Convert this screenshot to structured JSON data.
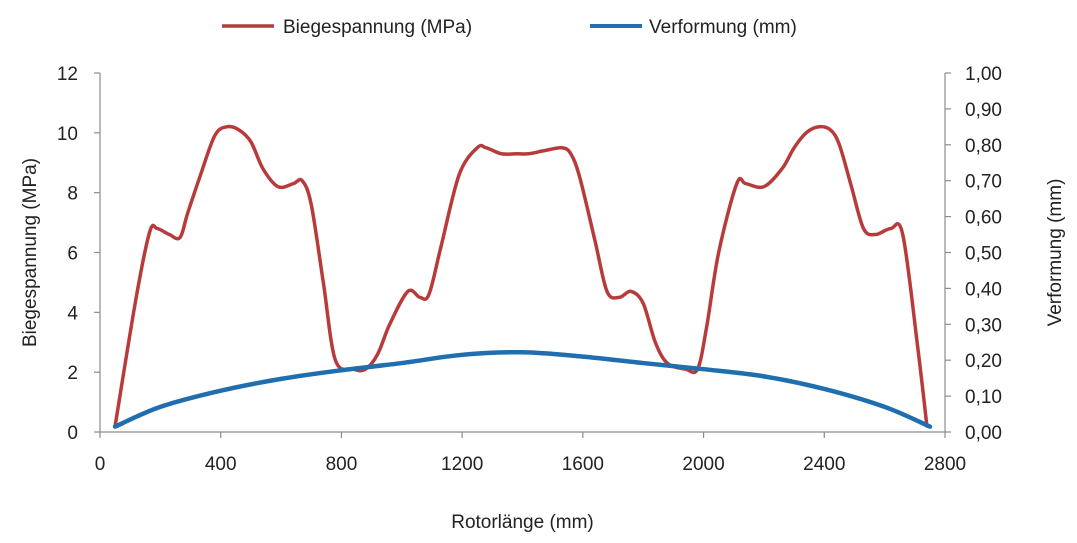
{
  "chart_data": {
    "type": "line",
    "title": "",
    "xlabel": "Rotorlänge (mm)",
    "ylabel_left": "Biegespannung (MPa)",
    "ylabel_right": "Verformung (mm)",
    "xlim": [
      0,
      2800
    ],
    "ylim_left": [
      0,
      12
    ],
    "ylim_right": [
      0,
      1.0
    ],
    "x_ticks": [
      "0",
      "400",
      "800",
      "1200",
      "1600",
      "2000",
      "2400",
      "2800"
    ],
    "y_left_ticks": [
      "0",
      "2",
      "4",
      "6",
      "8",
      "10",
      "12"
    ],
    "y_right_ticks": [
      "0,00",
      "0,10",
      "0,20",
      "0,30",
      "0,40",
      "0,50",
      "0,60",
      "0,70",
      "0,80",
      "0,90",
      "1,00"
    ],
    "grid": false,
    "legend_position": "top",
    "series": [
      {
        "name": "Biegespannung (MPa)",
        "axis": "left",
        "color": "#b83b3c",
        "x": [
          50,
          120,
          165,
          190,
          230,
          265,
          290,
          330,
          380,
          420,
          460,
          500,
          540,
          590,
          640,
          670,
          700,
          740,
          780,
          840,
          880,
          920,
          960,
          1020,
          1060,
          1090,
          1130,
          1190,
          1250,
          1280,
          1330,
          1380,
          1420,
          1470,
          1530,
          1560,
          1590,
          1640,
          1680,
          1720,
          1760,
          1800,
          1840,
          1880,
          1940,
          1980,
          2010,
          2050,
          2110,
          2140,
          2200,
          2260,
          2300,
          2340,
          2380,
          2420,
          2450,
          2490,
          2530,
          2570,
          2620,
          2660,
          2710,
          2740
        ],
        "y": [
          0.2,
          4.5,
          6.7,
          6.8,
          6.6,
          6.5,
          7.3,
          8.5,
          9.9,
          10.2,
          10.1,
          9.7,
          8.8,
          8.2,
          8.3,
          8.4,
          7.6,
          5.0,
          2.4,
          2.1,
          2.1,
          2.6,
          3.6,
          4.7,
          4.5,
          4.6,
          6.2,
          8.6,
          9.5,
          9.5,
          9.3,
          9.3,
          9.3,
          9.4,
          9.5,
          9.3,
          8.5,
          6.4,
          4.7,
          4.5,
          4.7,
          4.3,
          3.0,
          2.3,
          2.1,
          2.1,
          3.5,
          6.0,
          8.3,
          8.3,
          8.2,
          8.8,
          9.5,
          10.0,
          10.2,
          10.1,
          9.6,
          8.2,
          6.8,
          6.6,
          6.8,
          6.6,
          2.8,
          0.2
        ]
      },
      {
        "name": "Verformung (mm)",
        "axis": "right",
        "color": "#1f6fb0",
        "x": [
          50,
          200,
          400,
          600,
          800,
          1000,
          1200,
          1400,
          1600,
          1800,
          2000,
          2200,
          2400,
          2600,
          2750
        ],
        "y": [
          0.015,
          0.07,
          0.115,
          0.148,
          0.172,
          0.192,
          0.215,
          0.222,
          0.21,
          0.192,
          0.175,
          0.155,
          0.12,
          0.07,
          0.015
        ]
      }
    ]
  }
}
